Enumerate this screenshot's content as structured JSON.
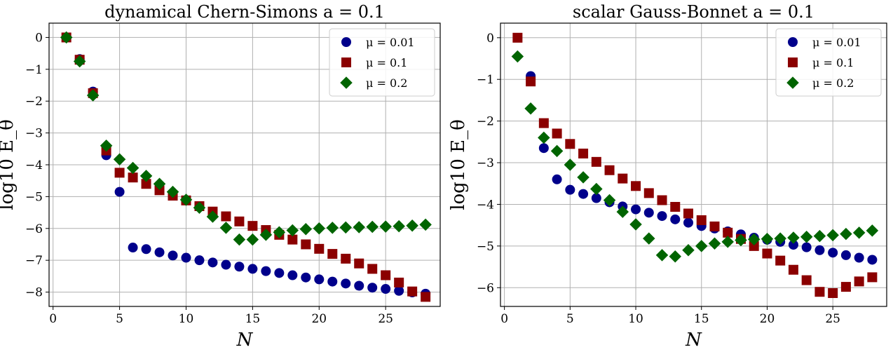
{
  "chart_data": [
    {
      "type": "scatter",
      "title": "dynamical Chern-Simons a = 0.1",
      "xlabel": "N",
      "ylabel": "log10 E_θ",
      "xlim": [
        -0.3,
        29.1
      ],
      "ylim": [
        -8.45,
        0.45
      ],
      "xticks": [
        0,
        5,
        10,
        15,
        20,
        25
      ],
      "yticks": [
        0,
        -1,
        -2,
        -3,
        -4,
        -5,
        -6,
        -7,
        -8
      ],
      "grid": true,
      "legend_position": "top-right",
      "series": [
        {
          "name": "μ = 0.01",
          "color": "#00008b",
          "marker": "circle",
          "x": [
            1,
            2,
            3,
            4,
            5,
            6,
            7,
            8,
            9,
            10,
            11,
            12,
            13,
            14,
            15,
            16,
            17,
            18,
            19,
            20,
            21,
            22,
            23,
            24,
            25,
            26,
            27,
            28
          ],
          "y": [
            0,
            -0.68,
            -1.7,
            -3.7,
            -4.85,
            -6.6,
            -6.65,
            -6.75,
            -6.85,
            -6.92,
            -7.0,
            -7.07,
            -7.14,
            -7.2,
            -7.27,
            -7.34,
            -7.4,
            -7.47,
            -7.54,
            -7.6,
            -7.67,
            -7.73,
            -7.8,
            -7.86,
            -7.9,
            -7.96,
            -8.01,
            -8.05
          ]
        },
        {
          "name": "μ = 0.1",
          "color": "#8b0000",
          "marker": "square",
          "x": [
            1,
            2,
            3,
            4,
            5,
            6,
            7,
            8,
            9,
            10,
            11,
            12,
            13,
            14,
            15,
            16,
            17,
            18,
            19,
            20,
            21,
            22,
            23,
            24,
            25,
            26,
            27,
            28
          ],
          "y": [
            0,
            -0.7,
            -1.75,
            -3.55,
            -4.25,
            -4.4,
            -4.6,
            -4.8,
            -4.97,
            -5.12,
            -5.3,
            -5.47,
            -5.62,
            -5.78,
            -5.92,
            -6.05,
            -6.2,
            -6.35,
            -6.5,
            -6.64,
            -6.8,
            -6.95,
            -7.1,
            -7.27,
            -7.47,
            -7.7,
            -7.98,
            -8.15
          ]
        },
        {
          "name": "μ = 0.2",
          "color": "#006400",
          "marker": "diamond",
          "x": [
            1,
            2,
            3,
            4,
            5,
            6,
            7,
            8,
            9,
            10,
            11,
            12,
            13,
            14,
            15,
            16,
            17,
            18,
            19,
            20,
            21,
            22,
            23,
            24,
            25,
            26,
            27,
            28
          ],
          "y": [
            0,
            -0.75,
            -1.82,
            -3.4,
            -3.83,
            -4.1,
            -4.35,
            -4.6,
            -4.85,
            -5.1,
            -5.35,
            -5.63,
            -5.98,
            -6.35,
            -6.35,
            -6.2,
            -6.12,
            -6.06,
            -6.02,
            -6.0,
            -5.98,
            -5.97,
            -5.96,
            -5.95,
            -5.94,
            -5.93,
            -5.91,
            -5.88
          ]
        }
      ]
    },
    {
      "type": "scatter",
      "title": "scalar Gauss-Bonnet a = 0.1",
      "xlabel": "N",
      "ylabel": "log10 E_θ",
      "xlim": [
        -0.3,
        29.1
      ],
      "ylim": [
        -6.45,
        0.35
      ],
      "xticks": [
        0,
        5,
        10,
        15,
        20,
        25
      ],
      "yticks": [
        0,
        -1,
        -2,
        -3,
        -4,
        -5,
        -6
      ],
      "grid": true,
      "legend_position": "top-right",
      "series": [
        {
          "name": "μ = 0.01",
          "color": "#00008b",
          "marker": "circle",
          "x": [
            2,
            3,
            4,
            5,
            6,
            7,
            8,
            9,
            10,
            11,
            12,
            13,
            14,
            15,
            16,
            17,
            18,
            19,
            20,
            21,
            22,
            23,
            24,
            25,
            26,
            27,
            28
          ],
          "y": [
            -0.92,
            -2.65,
            -3.4,
            -3.65,
            -3.75,
            -3.85,
            -3.95,
            -4.05,
            -4.12,
            -4.2,
            -4.28,
            -4.36,
            -4.44,
            -4.52,
            -4.58,
            -4.65,
            -4.72,
            -4.8,
            -4.85,
            -4.9,
            -4.97,
            -5.03,
            -5.1,
            -5.16,
            -5.22,
            -5.28,
            -5.33
          ]
        },
        {
          "name": "μ = 0.1",
          "color": "#8b0000",
          "marker": "square",
          "x": [
            1,
            2,
            3,
            4,
            5,
            6,
            7,
            8,
            9,
            10,
            11,
            12,
            13,
            14,
            15,
            16,
            17,
            18,
            19,
            20,
            21,
            22,
            23,
            24,
            25,
            26,
            27,
            28
          ],
          "y": [
            0,
            -1.05,
            -2.05,
            -2.3,
            -2.55,
            -2.78,
            -2.98,
            -3.18,
            -3.38,
            -3.56,
            -3.73,
            -3.9,
            -4.06,
            -4.22,
            -4.38,
            -4.53,
            -4.68,
            -4.83,
            -5.0,
            -5.18,
            -5.35,
            -5.57,
            -5.82,
            -6.1,
            -6.13,
            -5.98,
            -5.85,
            -5.75
          ]
        },
        {
          "name": "μ = 0.2",
          "color": "#006400",
          "marker": "diamond",
          "x": [
            1,
            2,
            3,
            4,
            5,
            6,
            7,
            8,
            9,
            10,
            11,
            12,
            13,
            14,
            15,
            16,
            17,
            18,
            19,
            20,
            21,
            22,
            23,
            24,
            25,
            26,
            27,
            28
          ],
          "y": [
            -0.45,
            -1.7,
            -2.4,
            -2.72,
            -3.05,
            -3.35,
            -3.63,
            -3.9,
            -4.18,
            -4.48,
            -4.82,
            -5.22,
            -5.25,
            -5.1,
            -5.0,
            -4.94,
            -4.9,
            -4.86,
            -4.84,
            -4.83,
            -4.82,
            -4.8,
            -4.78,
            -4.76,
            -4.74,
            -4.71,
            -4.68,
            -4.63
          ]
        }
      ]
    }
  ]
}
